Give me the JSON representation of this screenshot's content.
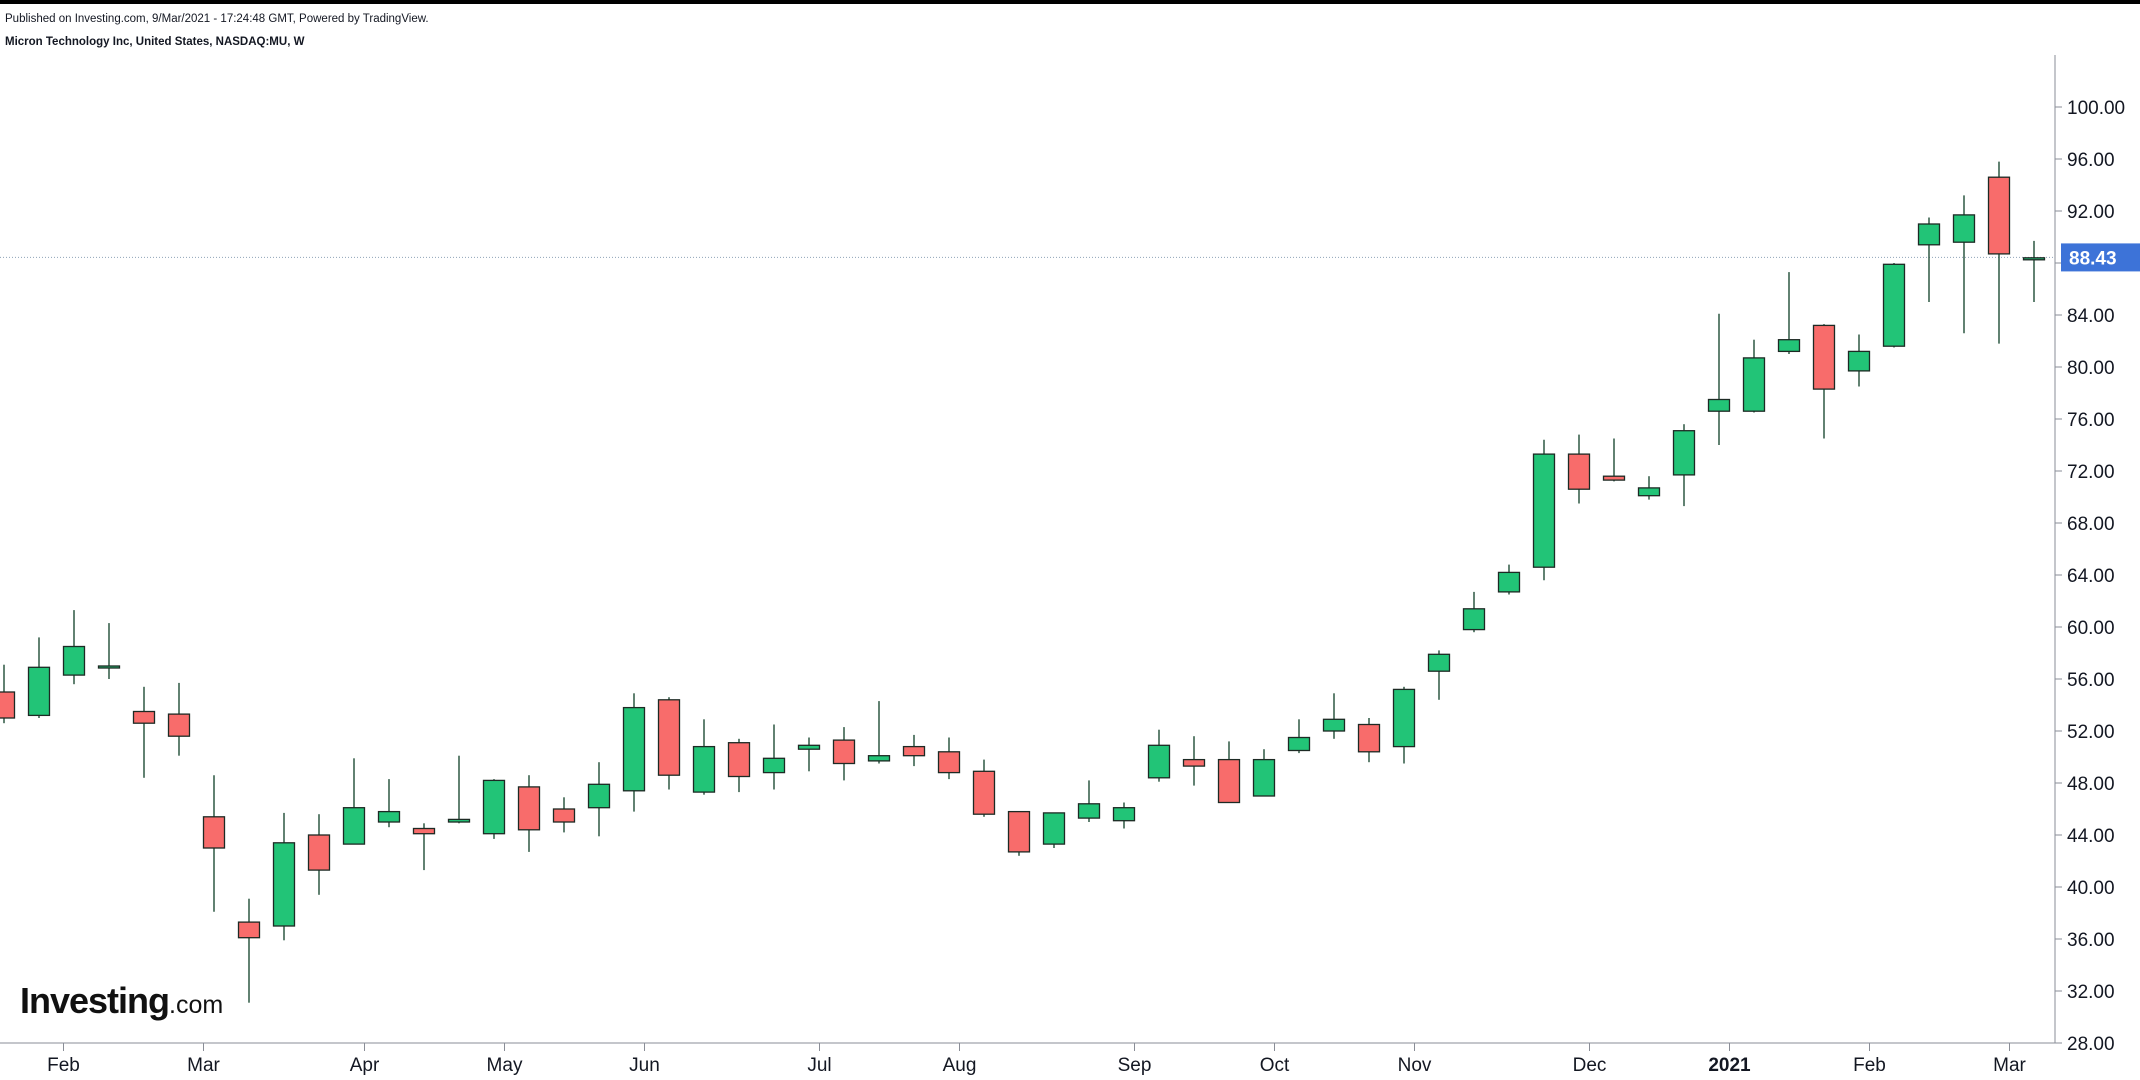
{
  "header": {
    "published": "Published on Investing.com, 9/Mar/2021 - 17:24:48 GMT, Powered by TradingView.",
    "symbol_line": "Micron Technology Inc, United States, NASDAQ:MU, W"
  },
  "logo": {
    "brand": "Investing",
    "tld": ".com"
  },
  "colors": {
    "up": "#22c477",
    "down": "#f86c6b",
    "wick": "#1e4d36",
    "last_price_bg": "#3d73d8",
    "axis": "#8a8e97",
    "price_line": "#8fa3b8"
  },
  "chart_data": {
    "type": "candlestick",
    "title": "Micron Technology Inc, United States, NASDAQ:MU, W",
    "interval": "W",
    "ylim": [
      28,
      104
    ],
    "y_ticks": [
      "28.00",
      "32.00",
      "36.00",
      "40.00",
      "44.00",
      "48.00",
      "52.00",
      "56.00",
      "60.00",
      "64.00",
      "68.00",
      "72.00",
      "76.00",
      "80.00",
      "84.00",
      "88.00",
      "92.00",
      "96.00",
      "100.00"
    ],
    "x_labels": [
      {
        "label": "Feb",
        "week": 1.7
      },
      {
        "label": "Mar",
        "week": 5.7
      },
      {
        "label": "Apr",
        "week": 10.3
      },
      {
        "label": "May",
        "week": 14.3
      },
      {
        "label": "Jun",
        "week": 18.3
      },
      {
        "label": "Jul",
        "week": 23.3
      },
      {
        "label": "Aug",
        "week": 27.3
      },
      {
        "label": "Sep",
        "week": 32.3
      },
      {
        "label": "Oct",
        "week": 36.3
      },
      {
        "label": "Nov",
        "week": 40.3
      },
      {
        "label": "Dec",
        "week": 45.3
      },
      {
        "label": "2021",
        "week": 49.3
      },
      {
        "label": "Feb",
        "week": 53.3
      },
      {
        "label": "Mar",
        "week": 57.3
      }
    ],
    "last_price": 88.43,
    "last_price_label": "88.43",
    "candles": [
      {
        "o": 55.0,
        "h": 57.1,
        "l": 52.6,
        "c": 53.0
      },
      {
        "o": 53.2,
        "h": 59.2,
        "l": 53.0,
        "c": 56.9
      },
      {
        "o": 56.3,
        "h": 61.3,
        "l": 55.6,
        "c": 58.5
      },
      {
        "o": 57.0,
        "h": 60.3,
        "l": 56.0,
        "c": 57.0
      },
      {
        "o": 53.5,
        "h": 55.4,
        "l": 48.4,
        "c": 52.6
      },
      {
        "o": 53.3,
        "h": 55.7,
        "l": 50.1,
        "c": 51.6
      },
      {
        "o": 45.4,
        "h": 48.6,
        "l": 38.1,
        "c": 43.0
      },
      {
        "o": 37.3,
        "h": 39.1,
        "l": 31.1,
        "c": 36.1
      },
      {
        "o": 37.0,
        "h": 45.7,
        "l": 35.9,
        "c": 43.4
      },
      {
        "o": 44.0,
        "h": 45.6,
        "l": 39.4,
        "c": 41.3
      },
      {
        "o": 43.3,
        "h": 49.9,
        "l": 43.3,
        "c": 46.1
      },
      {
        "o": 45.0,
        "h": 48.3,
        "l": 44.6,
        "c": 45.8
      },
      {
        "o": 44.5,
        "h": 44.9,
        "l": 41.3,
        "c": 44.1
      },
      {
        "o": 45.0,
        "h": 50.1,
        "l": 44.9,
        "c": 45.2
      },
      {
        "o": 44.1,
        "h": 48.3,
        "l": 43.7,
        "c": 48.2
      },
      {
        "o": 47.7,
        "h": 48.6,
        "l": 42.7,
        "c": 44.4
      },
      {
        "o": 46.0,
        "h": 46.9,
        "l": 44.2,
        "c": 45.0
      },
      {
        "o": 46.1,
        "h": 49.6,
        "l": 43.9,
        "c": 47.9
      },
      {
        "o": 47.4,
        "h": 54.9,
        "l": 45.8,
        "c": 53.8
      },
      {
        "o": 54.4,
        "h": 54.6,
        "l": 47.5,
        "c": 48.6
      },
      {
        "o": 47.3,
        "h": 52.9,
        "l": 47.1,
        "c": 50.8
      },
      {
        "o": 51.1,
        "h": 51.4,
        "l": 47.3,
        "c": 48.5
      },
      {
        "o": 48.8,
        "h": 52.5,
        "l": 47.5,
        "c": 49.9
      },
      {
        "o": 50.6,
        "h": 51.5,
        "l": 48.9,
        "c": 50.9
      },
      {
        "o": 51.3,
        "h": 52.3,
        "l": 48.2,
        "c": 49.5
      },
      {
        "o": 49.7,
        "h": 54.3,
        "l": 49.5,
        "c": 50.1
      },
      {
        "o": 50.8,
        "h": 51.7,
        "l": 49.3,
        "c": 50.1
      },
      {
        "o": 50.4,
        "h": 51.5,
        "l": 48.3,
        "c": 48.8
      },
      {
        "o": 48.9,
        "h": 49.8,
        "l": 45.4,
        "c": 45.6
      },
      {
        "o": 45.8,
        "h": 45.8,
        "l": 42.4,
        "c": 42.7
      },
      {
        "o": 43.3,
        "h": 45.7,
        "l": 43.0,
        "c": 45.7
      },
      {
        "o": 45.3,
        "h": 48.2,
        "l": 45.0,
        "c": 46.4
      },
      {
        "o": 45.1,
        "h": 46.5,
        "l": 44.5,
        "c": 46.1
      },
      {
        "o": 48.4,
        "h": 52.1,
        "l": 48.1,
        "c": 50.9
      },
      {
        "o": 49.8,
        "h": 51.6,
        "l": 47.8,
        "c": 49.3
      },
      {
        "o": 49.8,
        "h": 51.2,
        "l": 46.5,
        "c": 46.5
      },
      {
        "o": 47.0,
        "h": 50.6,
        "l": 47.0,
        "c": 49.8
      },
      {
        "o": 50.5,
        "h": 52.9,
        "l": 50.3,
        "c": 51.5
      },
      {
        "o": 52.0,
        "h": 54.9,
        "l": 51.4,
        "c": 52.9
      },
      {
        "o": 52.5,
        "h": 53.0,
        "l": 49.6,
        "c": 50.4
      },
      {
        "o": 50.8,
        "h": 55.4,
        "l": 49.5,
        "c": 55.2
      },
      {
        "o": 56.6,
        "h": 58.2,
        "l": 54.4,
        "c": 57.9
      },
      {
        "o": 59.8,
        "h": 62.7,
        "l": 59.6,
        "c": 61.4
      },
      {
        "o": 62.7,
        "h": 64.8,
        "l": 62.5,
        "c": 64.2
      },
      {
        "o": 64.6,
        "h": 74.4,
        "l": 63.6,
        "c": 73.3
      },
      {
        "o": 73.3,
        "h": 74.8,
        "l": 69.5,
        "c": 70.6
      },
      {
        "o": 71.6,
        "h": 74.5,
        "l": 71.2,
        "c": 71.3
      },
      {
        "o": 70.1,
        "h": 71.6,
        "l": 69.8,
        "c": 70.7
      },
      {
        "o": 71.7,
        "h": 75.6,
        "l": 69.3,
        "c": 75.1
      },
      {
        "o": 76.6,
        "h": 84.1,
        "l": 74.0,
        "c": 77.5
      },
      {
        "o": 76.6,
        "h": 82.1,
        "l": 76.5,
        "c": 80.7
      },
      {
        "o": 81.2,
        "h": 87.3,
        "l": 81.0,
        "c": 82.1
      },
      {
        "o": 83.2,
        "h": 83.3,
        "l": 74.5,
        "c": 78.3
      },
      {
        "o": 79.7,
        "h": 82.5,
        "l": 78.5,
        "c": 81.2
      },
      {
        "o": 81.6,
        "h": 88.0,
        "l": 81.5,
        "c": 87.9
      },
      {
        "o": 89.4,
        "h": 91.5,
        "l": 85.0,
        "c": 91.0
      },
      {
        "o": 89.6,
        "h": 93.2,
        "l": 82.6,
        "c": 91.7
      },
      {
        "o": 94.6,
        "h": 95.8,
        "l": 81.8,
        "c": 88.7
      },
      {
        "o": 88.3,
        "h": 89.7,
        "l": 85.0,
        "c": 88.4
      }
    ]
  }
}
